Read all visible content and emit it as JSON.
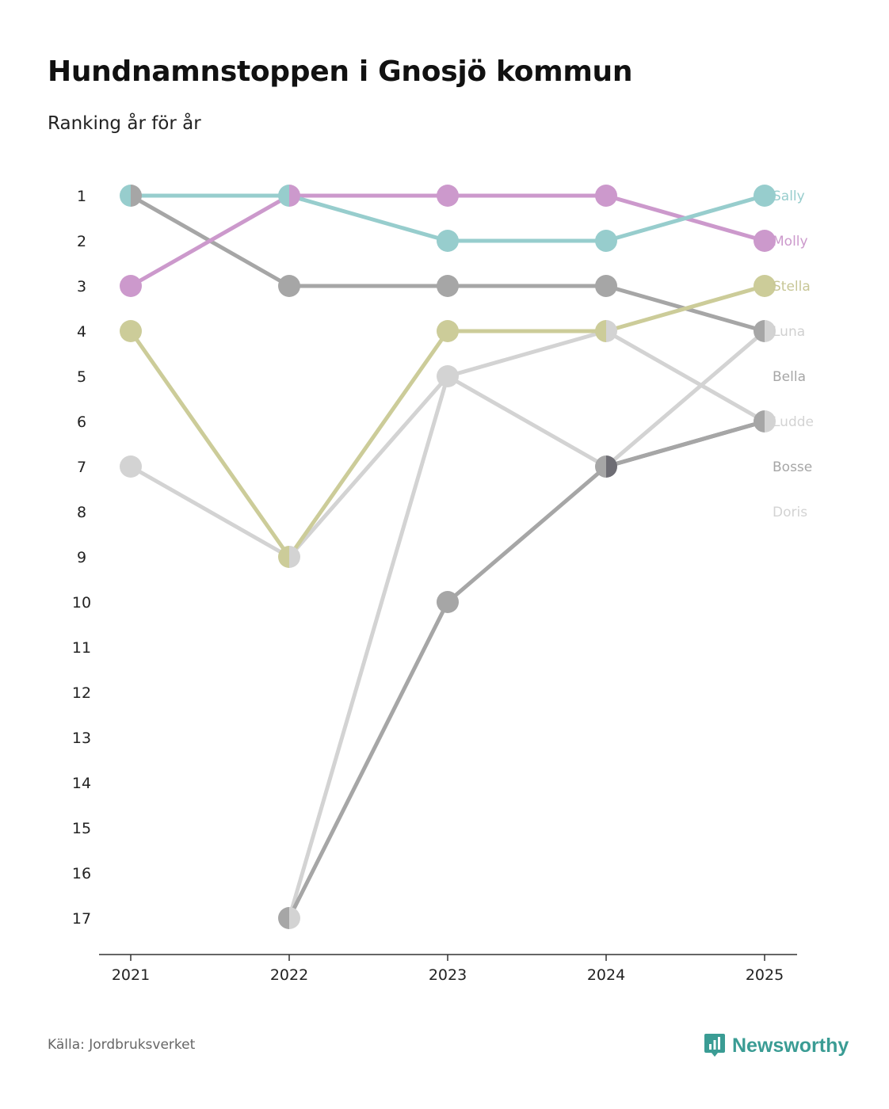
{
  "chart_data": {
    "type": "line",
    "title": "Hundnamnstoppen i Gnosjö kommun",
    "subtitle": "Ranking år för år",
    "x": [
      "2021",
      "2022",
      "2023",
      "2024",
      "2025"
    ],
    "y_ticks": [
      "1",
      "2",
      "3",
      "4",
      "5",
      "6",
      "7",
      "8",
      "9",
      "10",
      "11",
      "12",
      "13",
      "14",
      "15",
      "16",
      "17"
    ],
    "ylim": [
      1,
      17
    ],
    "y_inverted": true,
    "series": [
      {
        "name": "Sally",
        "color": "#97cdcd",
        "values": [
          1,
          1,
          2,
          2,
          1
        ]
      },
      {
        "name": "Molly",
        "color": "#cc99cc",
        "values": [
          3,
          1,
          1,
          1,
          2
        ]
      },
      {
        "name": "Stella",
        "color": "#cccc99",
        "values": [
          4,
          9,
          4,
          4,
          3
        ]
      },
      {
        "name": "Luna",
        "color": "#a6a6a6",
        "values": [
          1,
          3,
          3,
          3,
          4
        ]
      },
      {
        "name": "Bella",
        "color": "#a6a6a6",
        "values": [
          null,
          17,
          10,
          7,
          6
        ]
      },
      {
        "name": "Ludde",
        "color": "#d3d3d3",
        "values": [
          7,
          9,
          5,
          4,
          6
        ]
      },
      {
        "name": "Bosse",
        "color": "#6e6d74",
        "values": [
          null,
          null,
          null,
          7,
          6
        ]
      },
      {
        "name": "Doris",
        "color": "#d3d3d3",
        "values": [
          null,
          17,
          5,
          7,
          4
        ]
      }
    ],
    "end_labels": [
      {
        "name": "Sally",
        "color": "#97cdcd"
      },
      {
        "name": "Molly",
        "color": "#cc99cc"
      },
      {
        "name": "Stella",
        "color": "#c7c696"
      },
      {
        "name": "Luna",
        "color": "#d0d0d0"
      },
      {
        "name": "Bella",
        "color": "#a6a6a6"
      },
      {
        "name": "Ludde",
        "color": "#d3d3d3"
      },
      {
        "name": "Bosse",
        "color": "#a6a6a6"
      },
      {
        "name": "Doris",
        "color": "#d3d3d3"
      }
    ]
  },
  "footer": {
    "source": "Källa: Jordbruksverket",
    "brand": "Newsworthy",
    "brand_color": "#3a9c94"
  }
}
